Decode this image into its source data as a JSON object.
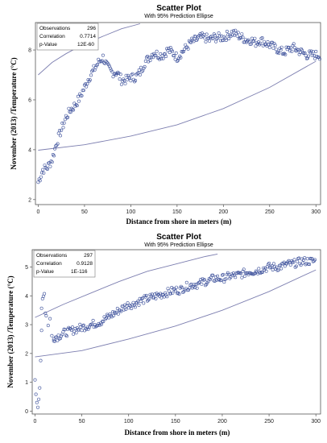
{
  "chart_data": [
    {
      "type": "scatter",
      "title": "Scatter Plot",
      "subtitle": "With 95% Prediction Ellipse",
      "xlabel": "Distance from shore in meters (m)",
      "ylabel": "November (2013) /Temperature (°C)",
      "xlim": [
        -3,
        305
      ],
      "ylim": [
        1.8,
        9.1
      ],
      "xticks": [
        0,
        50,
        100,
        150,
        200,
        250,
        300
      ],
      "yticks": [
        2,
        4,
        6,
        8
      ],
      "stats": [
        {
          "label": "Observations",
          "value": "296"
        },
        {
          "label": "Correlation",
          "value": "0.7714"
        },
        {
          "label": "p-Value",
          "value": "12E-60"
        }
      ],
      "ellipse_upper": {
        "x": [
          0,
          15,
          30,
          50,
          70,
          90,
          110
        ],
        "y": [
          7.0,
          7.5,
          7.85,
          8.25,
          8.55,
          8.85,
          9.05
        ]
      },
      "ellipse_lower": {
        "x": [
          0,
          50,
          100,
          150,
          200,
          250,
          300
        ],
        "y": [
          3.98,
          4.2,
          4.55,
          5.0,
          5.65,
          6.5,
          7.55
        ]
      },
      "segments": [
        {
          "x": [
            0,
            5,
            10,
            15,
            20,
            25,
            30,
            35,
            40,
            45,
            50,
            55,
            60,
            65,
            70,
            75,
            80,
            85,
            90,
            95,
            100,
            105,
            110,
            115,
            120,
            125,
            130,
            135,
            140,
            145,
            150,
            155,
            160,
            165,
            170,
            175,
            180,
            185,
            190,
            195,
            200,
            205,
            210,
            215,
            220,
            225,
            230,
            235,
            240,
            245,
            250,
            255,
            260,
            265,
            270,
            275,
            280,
            285,
            290,
            295,
            300
          ],
          "y": [
            2.7,
            3.2,
            3.3,
            3.6,
            4.3,
            4.8,
            5.3,
            5.6,
            5.8,
            6.1,
            6.5,
            6.9,
            7.2,
            7.5,
            7.7,
            7.3,
            7.1,
            7.1,
            6.8,
            6.8,
            6.9,
            6.9,
            7.1,
            7.5,
            7.7,
            7.9,
            7.8,
            7.8,
            8.0,
            7.9,
            7.7,
            7.9,
            8.1,
            8.3,
            8.4,
            8.5,
            8.5,
            8.4,
            8.5,
            8.5,
            8.5,
            8.6,
            8.7,
            8.6,
            8.5,
            8.4,
            8.4,
            8.3,
            8.4,
            8.3,
            8.2,
            8.1,
            8.0,
            7.9,
            8.0,
            8.1,
            8.0,
            7.9,
            7.8,
            7.8,
            7.8
          ],
          "n": 5,
          "jitter": 0.18
        }
      ]
    },
    {
      "type": "scatter",
      "title": "Scatter Plot",
      "subtitle": "With 95% Prediction Ellipse",
      "xlabel": "Distance from shore in meters (m)",
      "ylabel": "November (2013) /Temperature (°C)",
      "xlim": [
        -3,
        305
      ],
      "ylim": [
        -0.1,
        5.6
      ],
      "xticks": [
        0,
        50,
        100,
        150,
        200,
        250,
        300
      ],
      "yticks": [
        0,
        1,
        2,
        3,
        4,
        5
      ],
      "stats": [
        {
          "label": "Observations",
          "value": "297"
        },
        {
          "label": "Correlation",
          "value": "0.9128"
        },
        {
          "label": "p-Value",
          "value": "1E-116"
        }
      ],
      "ellipse_upper": {
        "x": [
          0,
          30,
          60,
          90,
          120,
          150,
          180,
          195
        ],
        "y": [
          3.25,
          3.7,
          4.1,
          4.5,
          4.85,
          5.1,
          5.35,
          5.45
        ]
      },
      "ellipse_lower": {
        "x": [
          0,
          50,
          100,
          150,
          200,
          250,
          300
        ],
        "y": [
          1.88,
          2.1,
          2.5,
          2.95,
          3.5,
          4.15,
          4.9
        ]
      },
      "segments": [
        {
          "x": [
            0,
            1,
            2,
            3,
            4,
            5,
            6,
            7
          ],
          "y": [
            1.1,
            0.6,
            0.25,
            0.1,
            0.4,
            0.8,
            1.8,
            2.8
          ],
          "n": 1,
          "jitter": 0.05
        },
        {
          "x": [
            7,
            8,
            9,
            10,
            11,
            12,
            14,
            16,
            18,
            20
          ],
          "y": [
            3.6,
            3.9,
            4.0,
            4.1,
            3.4,
            3.3,
            3.0,
            3.2,
            2.6,
            2.5
          ],
          "n": 1,
          "jitter": 0.05
        },
        {
          "x": [
            20,
            25,
            30,
            35,
            40,
            45,
            50,
            55,
            60,
            65,
            70,
            75,
            80,
            85,
            90,
            95,
            100,
            105,
            110,
            115,
            120,
            125,
            130,
            135,
            140,
            145,
            150,
            155,
            160,
            165,
            170,
            175,
            180,
            185,
            190,
            195,
            200,
            205,
            210,
            215,
            220,
            225,
            230,
            235,
            240,
            245,
            250,
            255,
            260,
            265,
            270,
            275,
            280,
            285,
            290,
            295
          ],
          "y": [
            2.55,
            2.6,
            2.7,
            2.75,
            2.8,
            2.85,
            2.9,
            2.95,
            3.0,
            3.05,
            3.1,
            3.2,
            3.3,
            3.4,
            3.5,
            3.6,
            3.7,
            3.7,
            3.8,
            3.85,
            3.9,
            3.95,
            4.0,
            4.05,
            4.1,
            4.15,
            4.2,
            4.2,
            4.3,
            4.35,
            4.4,
            4.4,
            4.5,
            4.5,
            4.6,
            4.6,
            4.6,
            4.65,
            4.7,
            4.7,
            4.75,
            4.8,
            4.85,
            4.85,
            4.9,
            4.95,
            5.0,
            5.0,
            5.0,
            5.05,
            5.1,
            5.1,
            5.15,
            5.2,
            5.2,
            5.2
          ],
          "n": 5,
          "jitter": 0.14
        }
      ]
    }
  ]
}
